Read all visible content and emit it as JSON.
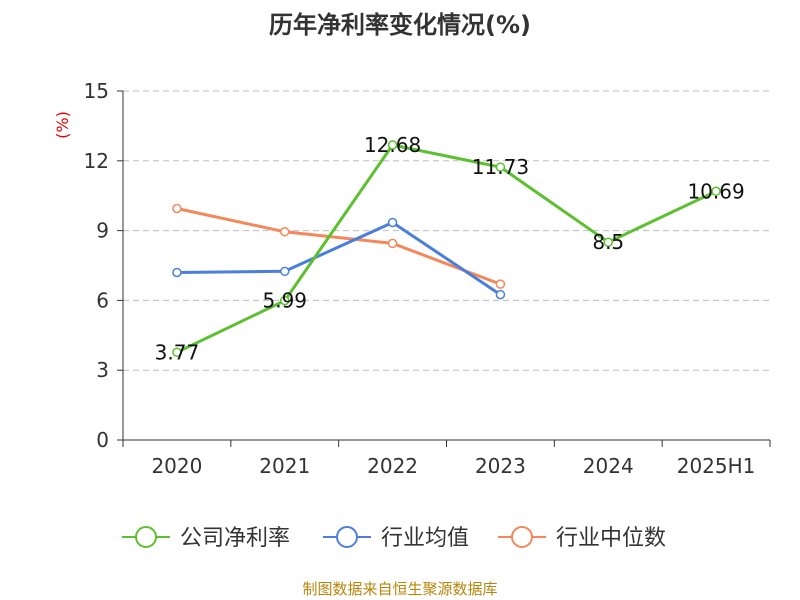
{
  "chart_data": {
    "type": "line",
    "title": "历年净利率变化情况(%)",
    "ylabel": "(%)",
    "xlabel": "",
    "categories": [
      "2020",
      "2021",
      "2022",
      "2023",
      "2024",
      "2025H1"
    ],
    "ylim": [
      0,
      15
    ],
    "yticks": [
      0,
      3,
      6,
      9,
      12,
      15
    ],
    "grid": "horizontal-dashed",
    "legend_position": "bottom",
    "series": [
      {
        "name": "公司净利率",
        "color": "#5cc030",
        "values": [
          3.77,
          5.99,
          12.68,
          11.73,
          8.5,
          10.69
        ],
        "labels": [
          "3.77",
          "5.99",
          "12.68",
          "11.73",
          "8.5",
          "10.69"
        ]
      },
      {
        "name": "行业均值",
        "color": "#4a7fdc",
        "values": [
          7.2,
          7.25,
          9.35,
          6.25,
          null,
          null
        ],
        "labels": []
      },
      {
        "name": "行业中位数",
        "color": "#f5875a",
        "values": [
          9.95,
          8.95,
          8.45,
          6.7,
          null,
          null
        ],
        "labels": []
      }
    ]
  },
  "footer": {
    "source": "制图数据来自恒生聚源数据库"
  }
}
